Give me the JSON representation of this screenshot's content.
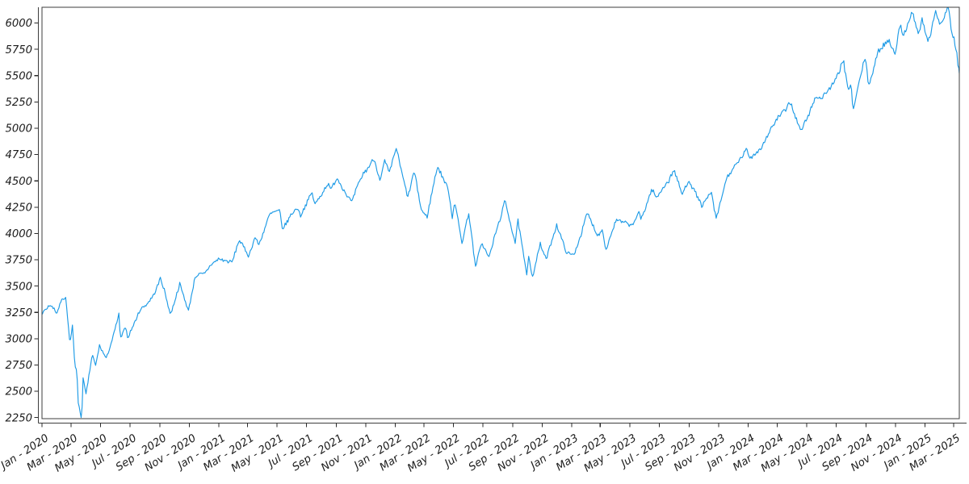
{
  "chart_data": {
    "type": "line",
    "title": "",
    "grid": false,
    "legend": "none",
    "line_color": "#1e9be6",
    "axis_color": "#3d3d3d",
    "label_color": "#1c1c1c",
    "x_domain": [
      "2020-01-01",
      "2025-03-13"
    ],
    "ylim": [
      2240,
      6150
    ],
    "y_ticks": [
      2250,
      2500,
      2750,
      3000,
      3250,
      3500,
      3750,
      4000,
      4250,
      4500,
      4750,
      5000,
      5250,
      5500,
      5750,
      6000
    ],
    "x_ticks": [
      {
        "label": "Jan - 2020",
        "date": "2020-01-01"
      },
      {
        "label": "Mar - 2020",
        "date": "2020-03-01"
      },
      {
        "label": "May - 2020",
        "date": "2020-05-01"
      },
      {
        "label": "Jul - 2020",
        "date": "2020-07-01"
      },
      {
        "label": "Sep - 2020",
        "date": "2020-09-01"
      },
      {
        "label": "Nov - 2020",
        "date": "2020-11-01"
      },
      {
        "label": "Jan - 2021",
        "date": "2021-01-01"
      },
      {
        "label": "Mar - 2021",
        "date": "2021-03-01"
      },
      {
        "label": "May - 2021",
        "date": "2021-05-01"
      },
      {
        "label": "Jul - 2021",
        "date": "2021-07-01"
      },
      {
        "label": "Sep - 2021",
        "date": "2021-09-01"
      },
      {
        "label": "Nov - 2021",
        "date": "2021-11-01"
      },
      {
        "label": "Jan - 2022",
        "date": "2022-01-01"
      },
      {
        "label": "Mar - 2022",
        "date": "2022-03-01"
      },
      {
        "label": "May - 2022",
        "date": "2022-05-01"
      },
      {
        "label": "Jul - 2022",
        "date": "2022-07-01"
      },
      {
        "label": "Sep - 2022",
        "date": "2022-09-01"
      },
      {
        "label": "Nov - 2022",
        "date": "2022-11-01"
      },
      {
        "label": "Jan - 2023",
        "date": "2023-01-01"
      },
      {
        "label": "Mar - 2023",
        "date": "2023-03-01"
      },
      {
        "label": "May - 2023",
        "date": "2023-05-01"
      },
      {
        "label": "Jul - 2023",
        "date": "2023-07-01"
      },
      {
        "label": "Sep - 2023",
        "date": "2023-09-01"
      },
      {
        "label": "Nov - 2023",
        "date": "2023-11-01"
      },
      {
        "label": "Jan - 2024",
        "date": "2024-01-01"
      },
      {
        "label": "Mar - 2024",
        "date": "2024-03-01"
      },
      {
        "label": "May - 2024",
        "date": "2024-05-01"
      },
      {
        "label": "Jul - 2024",
        "date": "2024-07-01"
      },
      {
        "label": "Sep - 2024",
        "date": "2024-09-01"
      },
      {
        "label": "Nov - 2024",
        "date": "2024-11-01"
      },
      {
        "label": "Jan - 2025",
        "date": "2025-01-01"
      },
      {
        "label": "Mar - 2025",
        "date": "2025-03-01"
      }
    ],
    "points": [
      [
        "2020-01-02",
        3258
      ],
      [
        "2020-01-17",
        3330
      ],
      [
        "2020-01-31",
        3226
      ],
      [
        "2020-02-10",
        3352
      ],
      [
        "2020-02-19",
        3386
      ],
      [
        "2020-02-28",
        2954
      ],
      [
        "2020-03-04",
        3130
      ],
      [
        "2020-03-09",
        2746
      ],
      [
        "2020-03-13",
        2711
      ],
      [
        "2020-03-16",
        2386
      ],
      [
        "2020-03-20",
        2305
      ],
      [
        "2020-03-23",
        2237
      ],
      [
        "2020-03-26",
        2630
      ],
      [
        "2020-04-01",
        2471
      ],
      [
        "2020-04-14",
        2846
      ],
      [
        "2020-04-21",
        2737
      ],
      [
        "2020-04-29",
        2940
      ],
      [
        "2020-05-13",
        2820
      ],
      [
        "2020-05-26",
        2992
      ],
      [
        "2020-06-08",
        3232
      ],
      [
        "2020-06-11",
        3002
      ],
      [
        "2020-06-23",
        3131
      ],
      [
        "2020-06-26",
        3009
      ],
      [
        "2020-07-22",
        3276
      ],
      [
        "2020-08-18",
        3390
      ],
      [
        "2020-09-02",
        3581
      ],
      [
        "2020-09-23",
        3237
      ],
      [
        "2020-10-12",
        3534
      ],
      [
        "2020-10-30",
        3270
      ],
      [
        "2020-11-13",
        3585
      ],
      [
        "2020-11-30",
        3622
      ],
      [
        "2020-12-31",
        3756
      ],
      [
        "2021-01-29",
        3714
      ],
      [
        "2021-02-12",
        3935
      ],
      [
        "2021-03-04",
        3768
      ],
      [
        "2021-03-17",
        3974
      ],
      [
        "2021-03-25",
        3910
      ],
      [
        "2021-04-16",
        4185
      ],
      [
        "2021-05-07",
        4233
      ],
      [
        "2021-05-12",
        4063
      ],
      [
        "2021-06-14",
        4255
      ],
      [
        "2021-06-18",
        4166
      ],
      [
        "2021-07-12",
        4385
      ],
      [
        "2021-07-19",
        4258
      ],
      [
        "2021-08-16",
        4480
      ],
      [
        "2021-08-19",
        4406
      ],
      [
        "2021-09-02",
        4537
      ],
      [
        "2021-10-04",
        4300
      ],
      [
        "2021-10-26",
        4575
      ],
      [
        "2021-11-18",
        4705
      ],
      [
        "2021-12-01",
        4513
      ],
      [
        "2021-12-10",
        4712
      ],
      [
        "2021-12-20",
        4568
      ],
      [
        "2022-01-03",
        4797
      ],
      [
        "2022-01-27",
        4327
      ],
      [
        "2022-02-09",
        4587
      ],
      [
        "2022-02-23",
        4226
      ],
      [
        "2022-03-08",
        4171
      ],
      [
        "2022-03-29",
        4631
      ],
      [
        "2022-04-21",
        4393
      ],
      [
        "2022-04-29",
        4132
      ],
      [
        "2022-05-04",
        4300
      ],
      [
        "2022-05-19",
        3901
      ],
      [
        "2022-06-02",
        4177
      ],
      [
        "2022-06-16",
        3667
      ],
      [
        "2022-06-27",
        3900
      ],
      [
        "2022-07-14",
        3790
      ],
      [
        "2022-08-16",
        4305
      ],
      [
        "2022-09-06",
        3908
      ],
      [
        "2022-09-12",
        4110
      ],
      [
        "2022-09-30",
        3586
      ],
      [
        "2022-10-04",
        3791
      ],
      [
        "2022-10-12",
        3577
      ],
      [
        "2022-10-28",
        3901
      ],
      [
        "2022-11-09",
        3748
      ],
      [
        "2022-12-01",
        4076
      ],
      [
        "2022-12-22",
        3822
      ],
      [
        "2023-01-05",
        3808
      ],
      [
        "2023-02-02",
        4180
      ],
      [
        "2023-02-24",
        3970
      ],
      [
        "2023-03-06",
        4048
      ],
      [
        "2023-03-13",
        3856
      ],
      [
        "2023-04-03",
        4124
      ],
      [
        "2023-05-04",
        4061
      ],
      [
        "2023-05-19",
        4192
      ],
      [
        "2023-05-24",
        4115
      ],
      [
        "2023-06-16",
        4410
      ],
      [
        "2023-06-26",
        4329
      ],
      [
        "2023-07-31",
        4589
      ],
      [
        "2023-08-18",
        4370
      ],
      [
        "2023-09-01",
        4516
      ],
      [
        "2023-09-27",
        4274
      ],
      [
        "2023-10-17",
        4373
      ],
      [
        "2023-10-27",
        4117
      ],
      [
        "2023-11-17",
        4514
      ],
      [
        "2023-12-01",
        4595
      ],
      [
        "2023-12-28",
        4783
      ],
      [
        "2024-01-05",
        4697
      ],
      [
        "2024-01-31",
        4846
      ],
      [
        "2024-02-13",
        4953
      ],
      [
        "2024-03-28",
        5254
      ],
      [
        "2024-04-19",
        4967
      ],
      [
        "2024-05-21",
        5321
      ],
      [
        "2024-05-31",
        5278
      ],
      [
        "2024-06-28",
        5460
      ],
      [
        "2024-07-16",
        5667
      ],
      [
        "2024-07-25",
        5399
      ],
      [
        "2024-08-01",
        5446
      ],
      [
        "2024-08-05",
        5186
      ],
      [
        "2024-08-30",
        5648
      ],
      [
        "2024-09-06",
        5408
      ],
      [
        "2024-09-26",
        5745
      ],
      [
        "2024-10-17",
        5841
      ],
      [
        "2024-10-31",
        5705
      ],
      [
        "2024-11-11",
        6001
      ],
      [
        "2024-11-15",
        5871
      ],
      [
        "2024-11-29",
        6032
      ],
      [
        "2024-12-06",
        6090
      ],
      [
        "2024-12-19",
        5867
      ],
      [
        "2024-12-26",
        6038
      ],
      [
        "2025-01-02",
        5869
      ],
      [
        "2025-01-10",
        5827
      ],
      [
        "2025-01-23",
        6119
      ],
      [
        "2025-01-27",
        6012
      ],
      [
        "2025-02-03",
        5995
      ],
      [
        "2025-02-19",
        6144
      ],
      [
        "2025-02-27",
        5862
      ],
      [
        "2025-03-03",
        5850
      ],
      [
        "2025-03-04",
        5778
      ],
      [
        "2025-03-05",
        5843
      ],
      [
        "2025-03-06",
        5738
      ],
      [
        "2025-03-07",
        5770
      ],
      [
        "2025-03-10",
        5615
      ],
      [
        "2025-03-11",
        5572
      ],
      [
        "2025-03-13",
        5521
      ]
    ]
  }
}
